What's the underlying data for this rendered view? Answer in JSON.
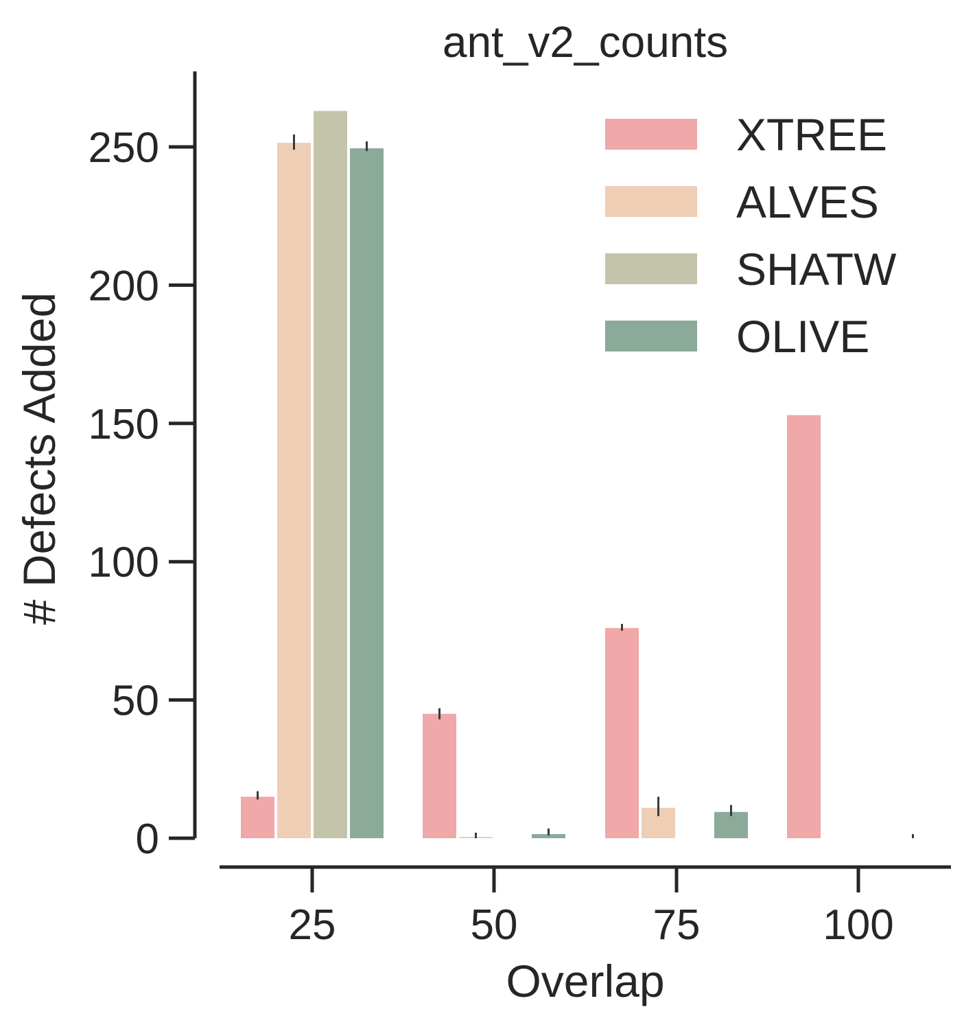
{
  "chart_data": {
    "type": "bar",
    "title": "ant_v2_counts",
    "xlabel": "Overlap",
    "ylabel": "# Defects Added",
    "categories": [
      "25",
      "50",
      "75",
      "100"
    ],
    "yticks": [
      "0",
      "50",
      "100",
      "150",
      "200",
      "250"
    ],
    "ytick_values": [
      0,
      50,
      100,
      150,
      200,
      250
    ],
    "ylim": [
      0,
      275
    ],
    "legend_position": "top-right",
    "grid": false,
    "series": [
      {
        "name": "XTREE",
        "color": "#f0a8a8",
        "values": [
          15,
          45,
          76,
          153
        ],
        "errors": [
          [
            14,
            17
          ],
          [
            43,
            47
          ],
          [
            75,
            77.5
          ],
          null
        ]
      },
      {
        "name": "ALVES",
        "color": "#efceb6",
        "values": [
          251.5,
          0.5,
          11,
          0
        ],
        "errors": [
          [
            249,
            254.5
          ],
          [
            0,
            2
          ],
          [
            8,
            15
          ],
          null
        ]
      },
      {
        "name": "SHATW",
        "color": "#c4c4ab",
        "values": [
          263,
          0,
          0,
          0
        ],
        "errors": [
          null,
          null,
          null,
          null
        ]
      },
      {
        "name": "OLIVE",
        "color": "#8baa9a",
        "values": [
          249.5,
          1.5,
          9.5,
          0
        ],
        "errors": [
          [
            248.5,
            252
          ],
          [
            1,
            3.5
          ],
          [
            8,
            12
          ],
          [
            0,
            1.5
          ]
        ]
      }
    ]
  }
}
